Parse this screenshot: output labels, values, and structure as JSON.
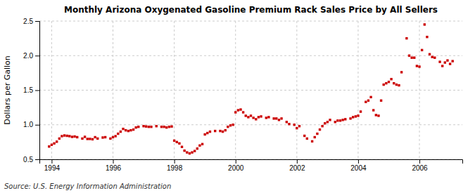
{
  "chart_data": {
    "type": "scatter",
    "title": "Monthly Arizona Oxygenated Gasoline Premium Rack Sales Price by All Sellers",
    "y_label": "Dollars per Gallon",
    "annotations": [
      "Source: U.S. Energy Information Administration"
    ],
    "color": "#cc0000",
    "marker": "square",
    "grid": true,
    "xlim": [
      1993.6,
      2007.4
    ],
    "xticks": [
      1994,
      1996,
      1998,
      2000,
      2002,
      2004,
      2006
    ],
    "ylim": [
      0.5,
      2.5
    ],
    "yticks": [
      0.5,
      {
        "value": 1.0,
        "label": "1.0"
      },
      1.5,
      {
        "value": 2.0,
        "label": "2.0"
      },
      2.5
    ],
    "x": [
      1993.917,
      1994.0,
      1994.083,
      1994.167,
      1994.25,
      1994.333,
      1994.417,
      1994.5,
      1994.583,
      1994.667,
      1994.75,
      1994.833,
      1995.0,
      1995.083,
      1995.167,
      1995.25,
      1995.333,
      1995.417,
      1995.5,
      1995.667,
      1995.75,
      1995.917,
      1996.0,
      1996.083,
      1996.167,
      1996.25,
      1996.333,
      1996.417,
      1996.5,
      1996.583,
      1996.667,
      1996.75,
      1996.833,
      1997.0,
      1997.083,
      1997.167,
      1997.25,
      1997.417,
      1997.583,
      1997.667,
      1997.75,
      1997.833,
      1997.917,
      1998.0,
      1998.083,
      1998.167,
      1998.25,
      1998.333,
      1998.417,
      1998.5,
      1998.583,
      1998.667,
      1998.75,
      1998.833,
      1998.917,
      1999.0,
      1999.083,
      1999.167,
      1999.333,
      1999.5,
      1999.583,
      1999.667,
      1999.75,
      1999.833,
      1999.917,
      2000.0,
      2000.083,
      2000.167,
      2000.25,
      2000.333,
      2000.417,
      2000.5,
      2000.583,
      2000.667,
      2000.75,
      2000.833,
      2001.0,
      2001.083,
      2001.25,
      2001.333,
      2001.417,
      2001.5,
      2001.667,
      2001.75,
      2001.917,
      2002.0,
      2002.083,
      2002.25,
      2002.333,
      2002.5,
      2002.583,
      2002.667,
      2002.75,
      2002.833,
      2002.917,
      2003.0,
      2003.083,
      2003.25,
      2003.333,
      2003.417,
      2003.5,
      2003.583,
      2003.75,
      2003.833,
      2003.917,
      2004.0,
      2004.083,
      2004.25,
      2004.333,
      2004.417,
      2004.5,
      2004.583,
      2004.667,
      2004.75,
      2004.833,
      2004.917,
      2005.0,
      2005.083,
      2005.167,
      2005.25,
      2005.333,
      2005.417,
      2005.583,
      2005.667,
      2005.75,
      2005.833,
      2005.917,
      2006.0,
      2006.083,
      2006.167,
      2006.25,
      2006.333,
      2006.417,
      2006.5,
      2006.667,
      2006.75,
      2006.833,
      2006.917,
      2007.0,
      2007.083
    ],
    "values": [
      0.685,
      0.71,
      0.73,
      0.755,
      0.8,
      0.835,
      0.845,
      0.84,
      0.835,
      0.825,
      0.83,
      0.82,
      0.8,
      0.825,
      0.795,
      0.795,
      0.79,
      0.82,
      0.8,
      0.815,
      0.82,
      0.8,
      0.82,
      0.835,
      0.87,
      0.9,
      0.94,
      0.92,
      0.91,
      0.92,
      0.93,
      0.96,
      0.97,
      0.98,
      0.975,
      0.97,
      0.97,
      0.98,
      0.97,
      0.97,
      0.96,
      0.97,
      0.975,
      0.77,
      0.75,
      0.73,
      0.68,
      0.625,
      0.6,
      0.585,
      0.6,
      0.62,
      0.655,
      0.7,
      0.72,
      0.86,
      0.88,
      0.9,
      0.91,
      0.91,
      0.9,
      0.92,
      0.97,
      0.99,
      1.0,
      1.18,
      1.21,
      1.22,
      1.18,
      1.13,
      1.11,
      1.13,
      1.1,
      1.08,
      1.11,
      1.12,
      1.1,
      1.11,
      1.09,
      1.09,
      1.07,
      1.09,
      1.04,
      1.01,
      1.0,
      0.95,
      0.98,
      0.84,
      0.8,
      0.76,
      0.82,
      0.87,
      0.93,
      0.98,
      1.02,
      1.04,
      1.07,
      1.04,
      1.06,
      1.06,
      1.07,
      1.08,
      1.09,
      1.11,
      1.12,
      1.13,
      1.19,
      1.33,
      1.35,
      1.4,
      1.21,
      1.14,
      1.13,
      1.35,
      1.58,
      1.6,
      1.62,
      1.66,
      1.6,
      1.58,
      1.57,
      1.76,
      2.25,
      2.0,
      1.97,
      1.97,
      1.85,
      1.84,
      2.08,
      2.45,
      2.27,
      2.02,
      1.98,
      1.97,
      1.91,
      1.85,
      1.9,
      1.93,
      1.88,
      1.92
    ]
  }
}
